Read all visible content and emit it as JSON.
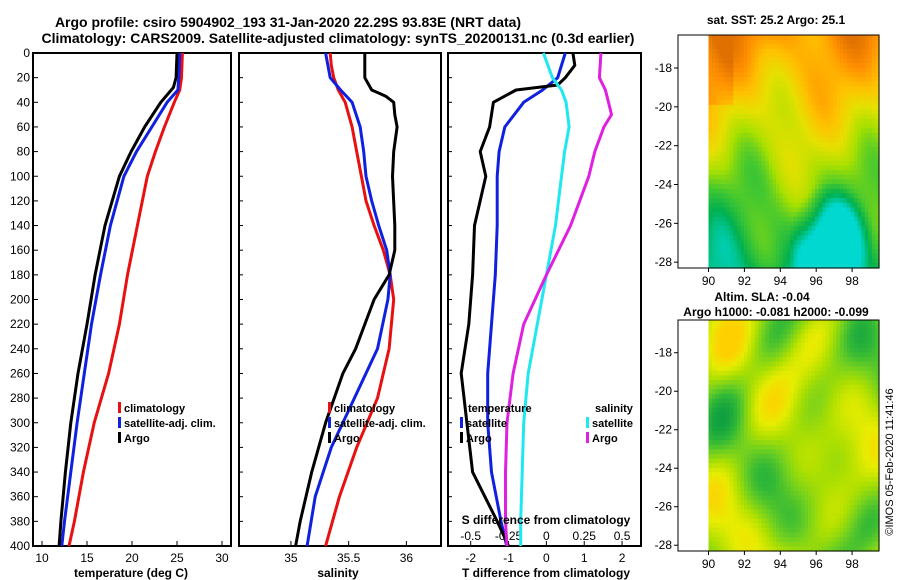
{
  "title": {
    "line1": "Argo profile: csiro 5904902_193 31-Jan-2020 22.29S 93.83E (NRT data)",
    "line2": "Climatology: CARS2009. Satellite-adjusted climatology: synTS_20200131.nc (0.3d earlier)"
  },
  "colors": {
    "climatology": "#e81010",
    "satellite": "#1020e0",
    "argo": "#000000",
    "t_satellite": "#000000",
    "s_satellite": "#20e8f0",
    "s_argo": "#e020e0"
  },
  "chart_data": [
    {
      "id": "temperature",
      "type": "line",
      "xlabel": "temperature (deg C)",
      "xlim": [
        9,
        31
      ],
      "x_ticks": [
        10,
        15,
        20,
        25,
        30
      ],
      "ylim": [
        400,
        0
      ],
      "y_ticks": [
        0,
        20,
        40,
        60,
        80,
        100,
        120,
        140,
        160,
        180,
        200,
        220,
        240,
        260,
        280,
        300,
        320,
        340,
        360,
        380,
        400
      ],
      "legend": [
        "climatology",
        "satellite-adj. clim.",
        "Argo"
      ],
      "series": [
        {
          "name": "climatology",
          "depth": [
            0,
            20,
            30,
            40,
            60,
            80,
            100,
            140,
            180,
            220,
            260,
            300,
            340,
            380,
            400
          ],
          "values": [
            25.6,
            25.5,
            25.3,
            24.7,
            23.6,
            22.6,
            21.7,
            20.6,
            19.5,
            18.6,
            17.4,
            15.8,
            14.6,
            13.6,
            13.0
          ]
        },
        {
          "name": "satellite-adj. clim.",
          "depth": [
            0,
            20,
            30,
            40,
            60,
            80,
            100,
            140,
            180,
            220,
            260,
            300,
            340,
            380,
            400
          ],
          "values": [
            25.3,
            25.2,
            25.1,
            23.9,
            22.2,
            20.5,
            19.1,
            17.6,
            16.5,
            15.5,
            14.7,
            13.9,
            13.2,
            12.5,
            12.2
          ]
        },
        {
          "name": "Argo",
          "depth": [
            0,
            20,
            28,
            40,
            60,
            80,
            100,
            140,
            180,
            220,
            260,
            300,
            340,
            380,
            400
          ],
          "values": [
            25.0,
            24.9,
            24.6,
            23.2,
            21.4,
            19.9,
            18.6,
            17.0,
            15.9,
            15.0,
            14.0,
            13.2,
            12.6,
            12.1,
            11.9
          ]
        }
      ]
    },
    {
      "id": "salinity",
      "type": "line",
      "xlabel": "salinity",
      "x_tick_labels": [
        "35",
        "35.5",
        "36"
      ],
      "x_ticks": [
        35,
        35.5,
        36
      ],
      "xlim": [
        34.55,
        36.3
      ],
      "ylim": [
        400,
        0
      ],
      "legend": [
        "climatology",
        "satellite-adj. clim.",
        "Argo"
      ],
      "series": [
        {
          "name": "climatology",
          "depth": [
            0,
            10,
            20,
            30,
            40,
            60,
            80,
            100,
            120,
            140,
            160,
            180,
            200,
            240,
            280,
            320,
            360,
            400
          ],
          "values": [
            35.34,
            35.35,
            35.37,
            35.41,
            35.47,
            35.53,
            35.57,
            35.61,
            35.65,
            35.72,
            35.8,
            35.86,
            35.89,
            35.85,
            35.75,
            35.57,
            35.42,
            35.3
          ]
        },
        {
          "name": "satellite-adj. clim.",
          "depth": [
            0,
            20,
            30,
            40,
            60,
            80,
            100,
            120,
            140,
            160,
            180,
            200,
            240,
            280,
            320,
            360,
            400
          ],
          "values": [
            35.3,
            35.34,
            35.43,
            35.53,
            35.6,
            35.63,
            35.65,
            35.7,
            35.76,
            35.83,
            35.86,
            35.84,
            35.75,
            35.55,
            35.35,
            35.21,
            35.14
          ]
        },
        {
          "name": "Argo",
          "depth": [
            0,
            20,
            30,
            35,
            40,
            50,
            60,
            80,
            100,
            140,
            160,
            180,
            200,
            240,
            260,
            300,
            340,
            380,
            400
          ],
          "values": [
            35.64,
            35.64,
            35.7,
            35.82,
            35.89,
            35.9,
            35.92,
            35.89,
            35.88,
            35.9,
            35.9,
            35.85,
            35.72,
            35.56,
            35.45,
            35.3,
            35.18,
            35.08,
            35.04
          ]
        }
      ]
    },
    {
      "id": "differences",
      "type": "line",
      "xlabel": "T difference from climatology",
      "x_tick_labels": [
        "-2",
        "-1",
        "0",
        "1",
        "2"
      ],
      "x_ticks": [
        -2,
        -1,
        0,
        1,
        2
      ],
      "xlim": [
        -2.6,
        2.5
      ],
      "xlabel_top": "S difference from climatology",
      "s_tick_labels": [
        "-0.5",
        "-0.25",
        "0",
        "0.25",
        "0.5"
      ],
      "s_ticks": [
        -0.5,
        -0.25,
        0,
        0.25,
        0.5
      ],
      "ylim": [
        400,
        0
      ],
      "legend_temperature_title": "temperature",
      "legend_salinity_title": "salinity",
      "legend_t": [
        "satellite",
        "Argo"
      ],
      "legend_s": [
        "satellite",
        "Argo"
      ],
      "series": [
        {
          "name": "T satellite",
          "depth": [
            0,
            20,
            30,
            40,
            60,
            80,
            100,
            140,
            180,
            220,
            260,
            300,
            340,
            380,
            400
          ],
          "values": [
            0.5,
            0.3,
            -0.1,
            -0.6,
            -1.1,
            -1.25,
            -1.3,
            -1.3,
            -1.35,
            -1.45,
            -1.55,
            -1.55,
            -1.45,
            -1.2,
            -1.05
          ]
        },
        {
          "name": "T Argo",
          "depth": [
            0,
            10,
            20,
            26,
            30,
            40,
            60,
            80,
            100,
            140,
            180,
            220,
            260,
            300,
            340,
            380,
            400
          ],
          "values": [
            0.7,
            0.75,
            0.5,
            0.3,
            -0.8,
            -1.4,
            -1.5,
            -1.75,
            -1.6,
            -1.9,
            -1.95,
            -2.05,
            -2.25,
            -2.1,
            -1.95,
            -1.3,
            -1.0
          ]
        },
        {
          "name": "S satellite",
          "depth": [
            0,
            20,
            30,
            40,
            60,
            80,
            100,
            140,
            180,
            220,
            260,
            300,
            340,
            380,
            400
          ],
          "values": [
            -0.02,
            0.04,
            0.1,
            0.13,
            0.15,
            0.12,
            0.1,
            0.06,
            0.0,
            -0.06,
            -0.12,
            -0.15,
            -0.16,
            -0.17,
            -0.17
          ]
        },
        {
          "name": "S Argo",
          "depth": [
            0,
            20,
            30,
            40,
            50,
            60,
            80,
            100,
            140,
            180,
            220,
            260,
            300,
            340,
            380,
            400
          ],
          "values": [
            0.36,
            0.35,
            0.39,
            0.41,
            0.43,
            0.38,
            0.32,
            0.28,
            0.16,
            0.0,
            -0.15,
            -0.22,
            -0.26,
            -0.27,
            -0.27,
            -0.26
          ]
        }
      ]
    },
    {
      "id": "sst-map",
      "type": "heatmap",
      "title": "sat. SST: 25.2 Argo: 25.1",
      "x_ticks": [
        90,
        92,
        94,
        96,
        98
      ],
      "y_ticks": [
        -18,
        -20,
        -22,
        -24,
        -26,
        -28
      ],
      "xlim": [
        88.3,
        99.5
      ],
      "ylim": [
        -28.3,
        -16.3
      ],
      "data_xlim": [
        90,
        99.5
      ],
      "colormap": [
        "#00d8d0",
        "#00b050",
        "#44c830",
        "#a8e000",
        "#e6e000",
        "#ffc000",
        "#ff9000",
        "#e07000"
      ]
    },
    {
      "id": "sla-map",
      "type": "heatmap",
      "title_line1": "Altim. SLA: -0.04",
      "title_line2": "Argo h1000: -0.081 h2000: -0.099",
      "x_ticks": [
        90,
        92,
        94,
        96,
        98
      ],
      "y_ticks": [
        -18,
        -20,
        -22,
        -24,
        -26,
        -28
      ],
      "xlim": [
        88.3,
        99.5
      ],
      "ylim": [
        -28.3,
        -16.3
      ],
      "data_xlim": [
        90,
        99.5
      ],
      "colormap": [
        "#10a040",
        "#30b838",
        "#70d020",
        "#b0e000",
        "#e8ec00",
        "#ffd000"
      ]
    }
  ],
  "footer": "©IMOS 05-Feb-2020 11:41:46"
}
